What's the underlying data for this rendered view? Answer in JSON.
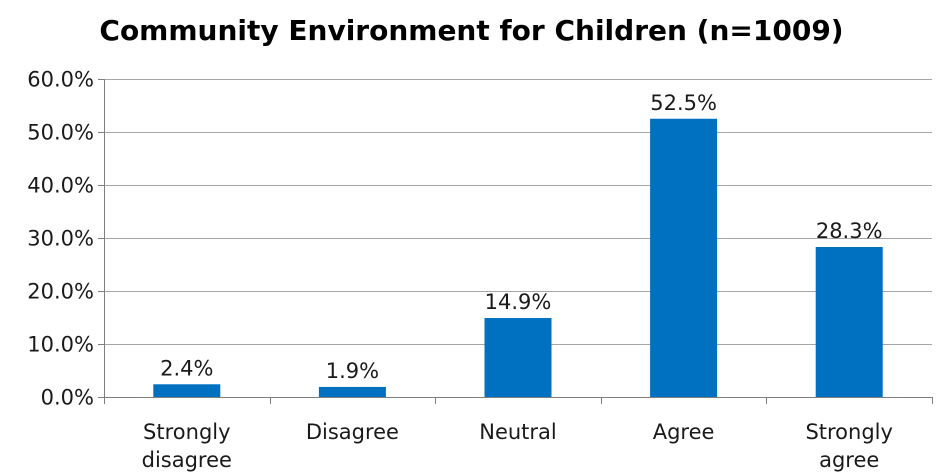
{
  "chart_data": {
    "type": "bar",
    "title": "Community Environment for Children (n=1009)",
    "categories": [
      "Strongly disagree",
      "Disagree",
      "Neutral",
      "Agree",
      "Strongly agree"
    ],
    "category_lines": [
      [
        "Strongly",
        "disagree"
      ],
      [
        "Disagree"
      ],
      [
        "Neutral"
      ],
      [
        "Agree"
      ],
      [
        "Strongly",
        "agree"
      ]
    ],
    "values": [
      2.4,
      1.9,
      14.9,
      52.5,
      28.3
    ],
    "data_labels": [
      "2.4%",
      "1.9%",
      "14.9%",
      "52.5%",
      "28.3%"
    ],
    "ylim": [
      0,
      60
    ],
    "yticks": [
      0,
      10,
      20,
      30,
      40,
      50,
      60
    ],
    "ytick_labels": [
      "0.0%",
      "10.0%",
      "20.0%",
      "30.0%",
      "40.0%",
      "50.0%",
      "60.0%"
    ],
    "xlabel": "",
    "ylabel": "",
    "grid": true,
    "bar_color": "#0070C0",
    "grid_color": "#A6A6A6",
    "axis_color": "#7F7F7F"
  }
}
